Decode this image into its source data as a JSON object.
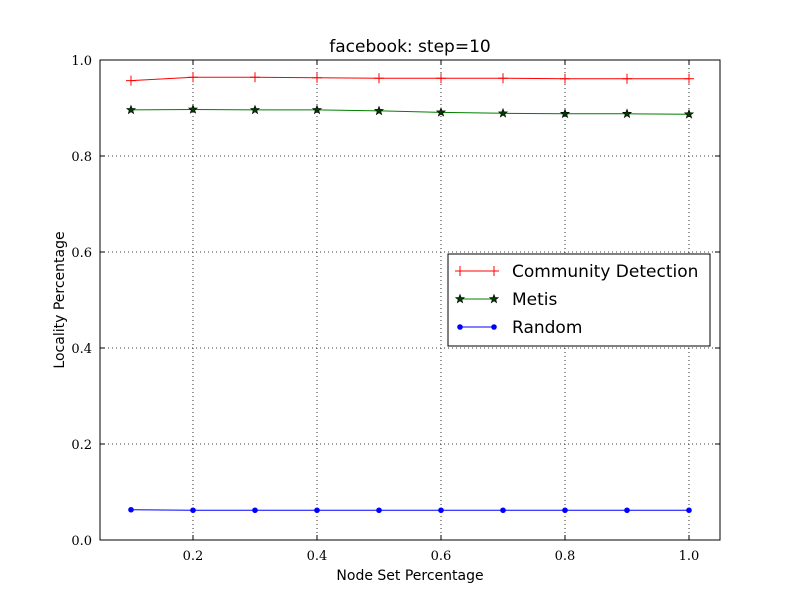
{
  "chart_data": {
    "type": "line",
    "title": "facebook: step=10",
    "xlabel": "Node Set Percentage",
    "ylabel": "Locality Percentage",
    "xlim": [
      0.05,
      1.05
    ],
    "ylim": [
      0.0,
      1.0
    ],
    "xticks": [
      0.2,
      0.4,
      0.6,
      0.8,
      1.0
    ],
    "xtick_labels": [
      "0.2",
      "0.4",
      "0.6",
      "0.8",
      "1.0"
    ],
    "yticks": [
      0.0,
      0.2,
      0.4,
      0.6,
      0.8,
      1.0
    ],
    "ytick_labels": [
      "0.0",
      "0.2",
      "0.4",
      "0.6",
      "0.8",
      "1.0"
    ],
    "grid": true,
    "legend_position": "center-right",
    "x": [
      0.1,
      0.2,
      0.3,
      0.4,
      0.5,
      0.6,
      0.7,
      0.8,
      0.9,
      1.0
    ],
    "series": [
      {
        "name": "Community Detection",
        "color": "#ff0000",
        "marker": "plus",
        "values": [
          0.957,
          0.964,
          0.964,
          0.963,
          0.962,
          0.962,
          0.962,
          0.961,
          0.961,
          0.961
        ]
      },
      {
        "name": "Metis",
        "color": "#007f00",
        "marker": "star",
        "values": [
          0.896,
          0.897,
          0.896,
          0.896,
          0.894,
          0.891,
          0.889,
          0.888,
          0.888,
          0.887
        ]
      },
      {
        "name": "Random",
        "color": "#0000ff",
        "marker": "dot",
        "values": [
          0.063,
          0.062,
          0.062,
          0.062,
          0.062,
          0.062,
          0.062,
          0.062,
          0.062,
          0.062
        ]
      }
    ]
  }
}
